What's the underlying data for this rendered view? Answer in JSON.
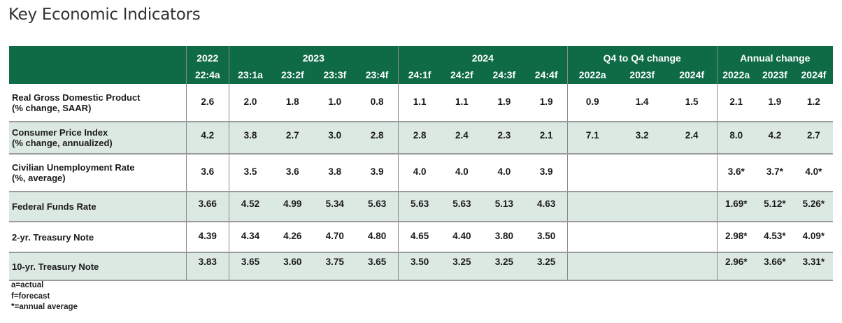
{
  "title": "Key Economic Indicators",
  "header": {
    "groups": [
      "2022",
      "2023",
      "2024",
      "Q4 to Q4 change",
      "Annual change"
    ],
    "subcols": [
      "22:4a",
      "23:1a",
      "23:2f",
      "23:3f",
      "23:4f",
      "24:1f",
      "24:2f",
      "24:3f",
      "24:4f",
      "2022a",
      "2023f",
      "2024f",
      "2022a",
      "2023f",
      "2024f"
    ]
  },
  "rows": [
    {
      "label1": "Real Gross Domestic Product",
      "label2": "(% change, SAAR)",
      "values": [
        "2.6",
        "2.0",
        "1.8",
        "1.0",
        "0.8",
        "1.1",
        "1.1",
        "1.9",
        "1.9",
        "0.9",
        "1.4",
        "1.5",
        "2.1",
        "1.9",
        "1.2"
      ]
    },
    {
      "label1": "Consumer Price Index",
      "label2": "(% change, annualized)",
      "values": [
        "4.2",
        "3.8",
        "2.7",
        "3.0",
        "2.8",
        "2.8",
        "2.4",
        "2.3",
        "2.1",
        "7.1",
        "3.2",
        "2.4",
        "8.0",
        "4.2",
        "2.7"
      ]
    },
    {
      "label1": "Civilian Unemployment Rate",
      "label2": "(%, average)",
      "values": [
        "3.6",
        "3.5",
        "3.6",
        "3.8",
        "3.9",
        "4.0",
        "4.0",
        "4.0",
        "3.9",
        "",
        "",
        "",
        "3.6*",
        "3.7*",
        "4.0*"
      ]
    },
    {
      "label1": "Federal Funds Rate",
      "label2": "",
      "values": [
        "3.66",
        "4.52",
        "4.99",
        "5.34",
        "5.63",
        "5.63",
        "5.63",
        "5.13",
        "4.63",
        "",
        "",
        "",
        "1.69*",
        "5.12*",
        "5.26*"
      ]
    },
    {
      "label1": "2-yr. Treasury Note",
      "label2": "",
      "values": [
        "4.39",
        "4.34",
        "4.26",
        "4.70",
        "4.80",
        "4.65",
        "4.40",
        "3.80",
        "3.50",
        "",
        "",
        "",
        "2.98*",
        "4.53*",
        "4.09*"
      ]
    },
    {
      "label1": "10-yr. Treasury Note",
      "label2": "",
      "values": [
        "3.83",
        "3.65",
        "3.60",
        "3.75",
        "3.65",
        "3.50",
        "3.25",
        "3.25",
        "3.25",
        "",
        "",
        "",
        "2.96*",
        "3.66*",
        "3.31*"
      ]
    }
  ],
  "notes": [
    "a=actual",
    "f=forecast",
    "*=annual average"
  ],
  "colors": {
    "header_bg": "#0f6b45",
    "alt_row_bg": "#dce9e2"
  }
}
